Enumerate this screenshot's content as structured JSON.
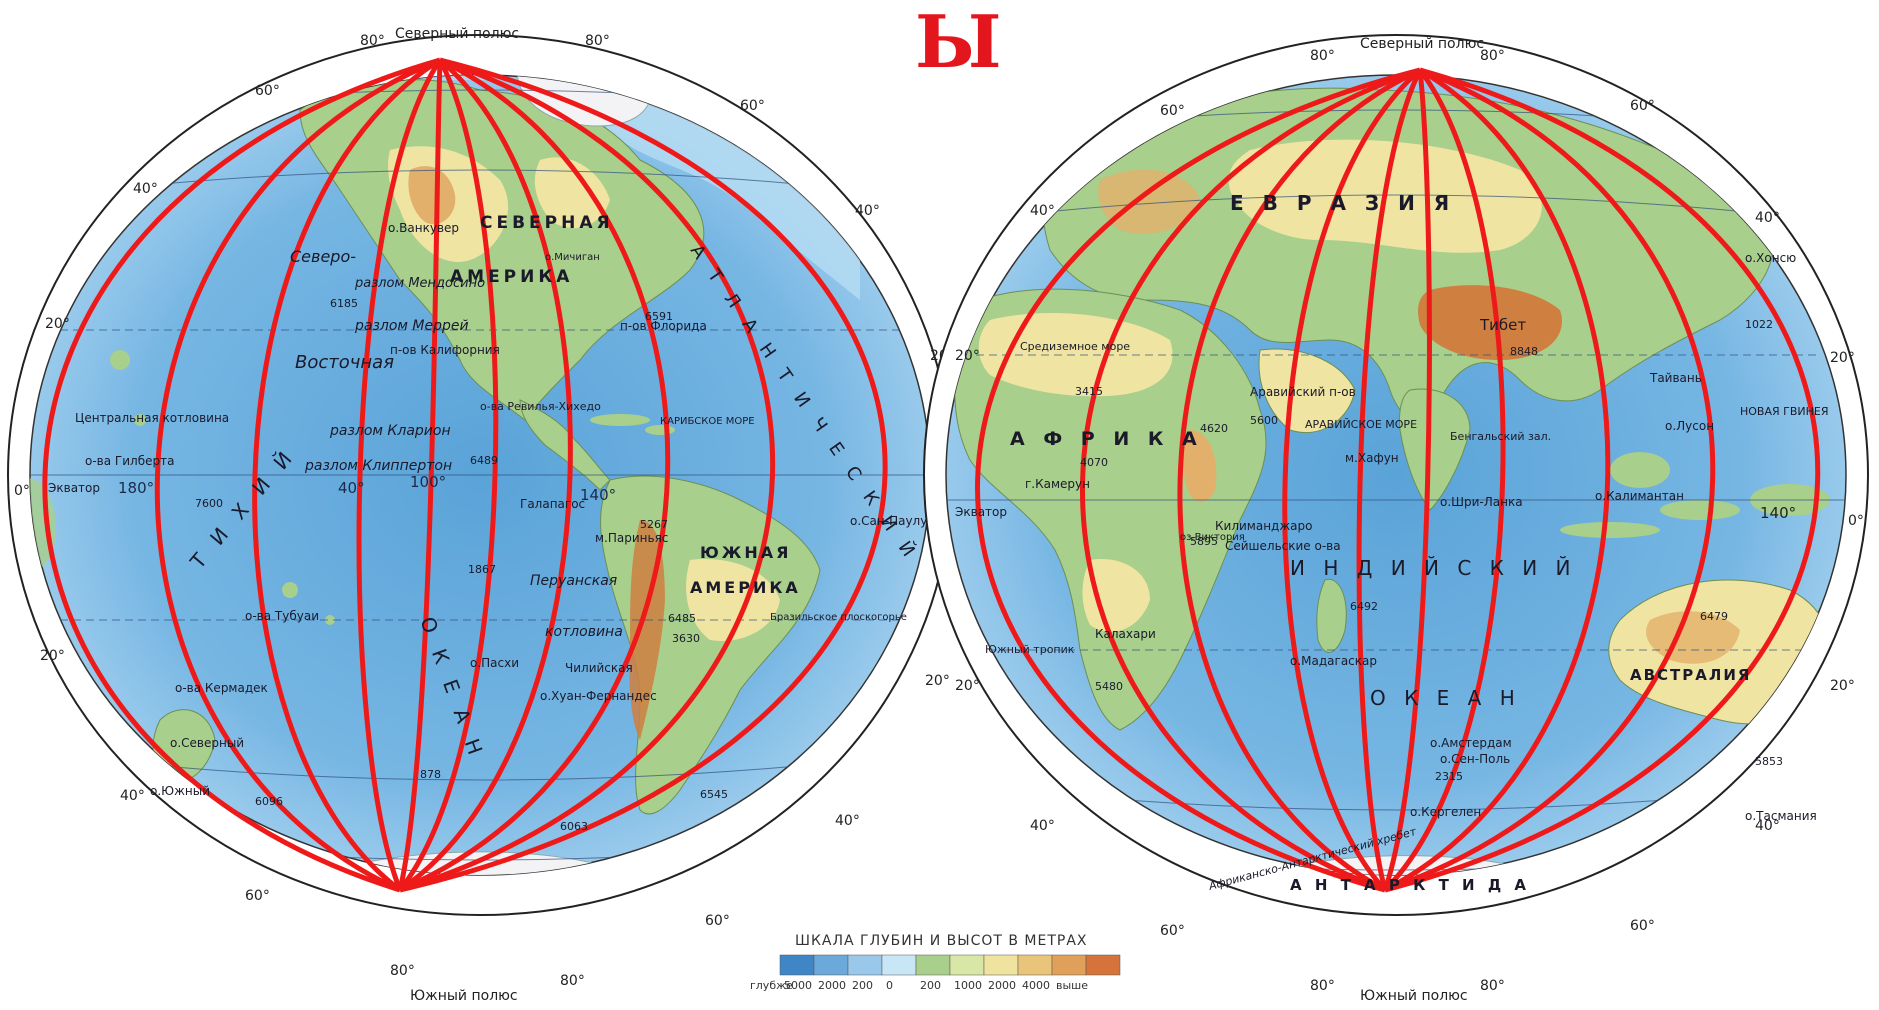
{
  "header_letter": "Ы",
  "colors": {
    "ocean_deep": "#4f9ad3",
    "ocean_mid": "#7fbde7",
    "ocean_shallow": "#b7dcf2",
    "land_low": "#a8cf8b",
    "land_mid": "#efe4a2",
    "land_high": "#e2b06a",
    "mountains": "#cf7f3f",
    "ice": "#f3f3f6",
    "meridians": "#ee1a1a",
    "grid": "#2f4f7f"
  },
  "hemispheres": {
    "west": {
      "north_pole": "Северный полюс",
      "south_pole": "Южный полюс",
      "lat_labels_left": [
        "80°",
        "60°",
        "40°",
        "20°",
        "0°",
        "20°",
        "40°",
        "60°",
        "80°"
      ],
      "lat_labels_right": [
        "80°",
        "60°",
        "40°",
        "20°",
        "20°",
        "40°",
        "60°",
        "80°"
      ],
      "labels": {
        "sev_amer": "СЕВЕРНАЯ",
        "amerika": "АМЕРИКА",
        "yuzh": "ЮЖНАЯ",
        "amerika2": "АМЕРИКА",
        "ekvator": "Экватор",
        "peruan": "Перуанская",
        "kotlovina": "котловина",
        "kalif": "п-ов Калифорния",
        "florida": "п-ов Флорида",
        "vankuver": "о.Ванкувер",
        "karib": "КАРИБСКОЕ МОРЕ",
        "galapagos": "Галапагос",
        "pasha": "о.Пасхи",
        "san_paulu": "о.Сан-Паулу",
        "ozero": "о.Мичиган",
        "paryna": "м.Париньяс",
        "braz": "Бразильское плоскогорье",
        "centr": "Центральная котловина",
        "gilberta": "о-ва Гилберта",
        "clarion": "разлом Кларион",
        "klipperton": "разлом Клиппертон",
        "merrey": "разлом Меррей",
        "mendosino": "разлом Мендосино",
        "sev_kotl": "Северо-",
        "vost": "Восточная",
        "tihiy": "Т И Х И Й",
        "okean": "О К Е А Н",
        "atl": "А Т Л А Н Т И Ч Е С К И Й",
        "chiliyskaya": "Чилийская",
        "huan": "о.Хуан-Фернандес",
        "revilya": "о-ва Ревилья-Хихедо",
        "tubuai": "о-ва Тубуаи",
        "kermadek": "о-ва Кермадек",
        "sev": "о.Северный",
        "yuzhny": "о.Южный",
        "galap": "Галапагос",
        "depths": [
          "6185",
          "6489",
          "5267",
          "6591",
          "7600",
          "1867",
          "6485",
          "6063",
          "6096",
          "878",
          "3630",
          "6545"
        ]
      },
      "long_labels": [
        "180°",
        "140°",
        "100°",
        "40°"
      ]
    },
    "east": {
      "north_pole": "Северный полюс",
      "south_pole": "Южный полюс",
      "lat_labels_left": [
        "80°",
        "60°",
        "40°",
        "20°",
        "20°",
        "40°",
        "60°",
        "80°"
      ],
      "lat_labels_right": [
        "80°",
        "60°",
        "40°",
        "20°",
        "0°",
        "20°",
        "40°",
        "60°",
        "80°"
      ],
      "labels": {
        "evraziya": "Е В Р А З И Я",
        "afrika": "А Ф Р И К А",
        "avstraliya": "АВСТРАЛИЯ",
        "antarktida": "А Н Т А Р К Т И Д А",
        "ekvator": "Экватор",
        "indiyskiy": "И Н Д И Й С К И Й",
        "okean": "О К Е А Н",
        "tibet": "Тибет",
        "arab": "АРАВИЙСКОЕ МОРЕ",
        "bengal": "Бенгальский зал.",
        "madagaskar": "о.Мадагаскар",
        "shri": "о.Шри-Ланка",
        "kalimantan": "о.Калимантан",
        "novaya": "НОВАЯ ГВИНЕЯ",
        "taivan": "Тайвань",
        "lusson": "о.Лусон",
        "honsyu": "о.Хонсю",
        "sredizem": "Средиземное море",
        "arabskiy": "Аравийский п-ов",
        "kilimandzharo": "Килиманджаро",
        "seyshel": "Сейшельские о-ва",
        "amsterdam": "о.Амстердам",
        "sen_pol": "о.Сен-Поль",
        "kergelen": "о.Кергелен",
        "kaf": "Калахари",
        "hafun": "м.Хафун",
        "kamerun": "г.Камерун",
        "yuzh_tropik": "Южный тропик",
        "viktoriya": "оз.Виктория",
        "tasmaniya": "о.Тасмания",
        "afr_ant": "Африканско-Антарктический хребет",
        "depths": [
          "4070",
          "5895",
          "4620",
          "5600",
          "2315",
          "5853",
          "6479",
          "6492",
          "1022",
          "8848",
          "3415",
          "5480"
        ]
      },
      "long_labels": [
        "140°"
      ]
    }
  },
  "legend": {
    "title": "ШКАЛА ГЛУБИН И ВЫСОТ В МЕТРАХ",
    "ticks": [
      "глубже",
      "5000",
      "2000",
      "200",
      "0",
      "200",
      "1000",
      "2000",
      "4000",
      "выше"
    ],
    "colors": [
      "#3f86c6",
      "#6aa9da",
      "#9ac8ea",
      "#c9e6f6",
      "#a8cf8b",
      "#d8e7a5",
      "#f0e3a0",
      "#e9c47b",
      "#e0a05a",
      "#d4743a"
    ]
  }
}
